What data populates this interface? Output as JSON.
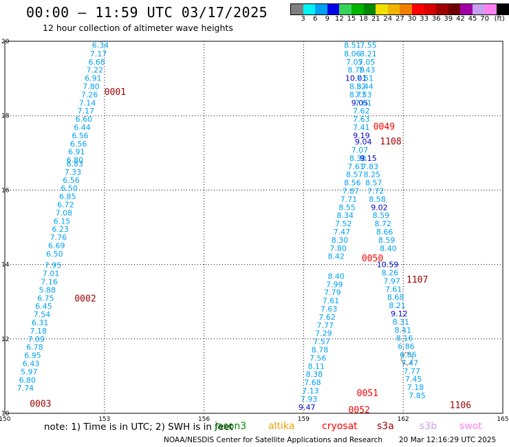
{
  "header": {
    "title": "00:00 — 11:59 UTC 03/17/2025",
    "subtitle": "12 hour collection of altimeter wave heights"
  },
  "colorbar": {
    "colors": [
      "#7f7f7f",
      "#00f2f2",
      "#00a0f0",
      "#0000e8",
      "#3ad35a",
      "#00b400",
      "#008800",
      "#f0e000",
      "#f0b400",
      "#f08000",
      "#ff0000",
      "#d80000",
      "#a00000",
      "#700000",
      "#a000a8",
      "#c8a0f0",
      "#ff80f0",
      "#000000"
    ],
    "labels": [
      "3",
      "6",
      "9",
      "12",
      "15",
      "18",
      "21",
      "24",
      "27",
      "30",
      "33",
      "36",
      "39",
      "42",
      "45",
      "70",
      "(ft)"
    ]
  },
  "map": {
    "x_ticks": [
      "150",
      "153",
      "156",
      "159",
      "162",
      "165"
    ],
    "y_ticks": [
      "20",
      "18",
      "16",
      "14",
      "12",
      "10"
    ]
  },
  "chart_data": {
    "type": "scatter",
    "xlim": [
      150,
      165
    ],
    "ylim": [
      10,
      20
    ],
    "grid": true,
    "x_ticks": [
      150,
      153,
      156,
      159,
      162,
      165
    ],
    "y_ticks": [
      10,
      12,
      14,
      16,
      18,
      20
    ],
    "tracks": [
      {
        "name": "0001",
        "label_pos": [
          153.0,
          18.65
        ],
        "points": [
          [
            152.88,
            19.9,
            "6.34"
          ],
          [
            152.82,
            19.67,
            "7.17"
          ],
          [
            152.77,
            19.45,
            "6.68"
          ],
          [
            152.71,
            19.23,
            "7.22"
          ],
          [
            152.66,
            19.01,
            "6.91"
          ],
          [
            152.6,
            18.79,
            "7.80"
          ],
          [
            152.55,
            18.57,
            "7.26"
          ],
          [
            152.49,
            18.35,
            "7.14"
          ],
          [
            152.44,
            18.13,
            "7.17"
          ],
          [
            152.38,
            17.91,
            "6.60"
          ],
          [
            152.33,
            17.69,
            "6.44"
          ],
          [
            152.27,
            17.47,
            "6.56"
          ],
          [
            152.22,
            17.25,
            "6.56"
          ],
          [
            152.16,
            17.03,
            "6.91"
          ],
          [
            152.11,
            16.81,
            "6.80"
          ],
          [
            152.11,
            16.71,
            "6.83"
          ],
          [
            152.05,
            16.49,
            "7.33"
          ],
          [
            152.0,
            16.27,
            "6.56"
          ],
          [
            151.94,
            16.05,
            "6.50"
          ],
          [
            151.89,
            15.83,
            "6.85"
          ],
          [
            151.83,
            15.61,
            "6.72"
          ],
          [
            151.78,
            15.39,
            "7.08"
          ],
          [
            151.72,
            15.17,
            "6.15"
          ],
          [
            151.67,
            14.95,
            "6.23"
          ],
          [
            151.61,
            14.73,
            "7.76"
          ],
          [
            151.56,
            14.51,
            "6.69"
          ],
          [
            151.5,
            14.29,
            "6.50"
          ]
        ]
      },
      {
        "name": "0002",
        "label_pos": [
          152.1,
          13.1
        ],
        "points": [
          [
            151.45,
            13.98,
            "7.95"
          ],
          [
            151.39,
            13.76,
            "7.01"
          ],
          [
            151.34,
            13.54,
            "7.16"
          ],
          [
            151.28,
            13.32,
            "5.88"
          ],
          [
            151.23,
            13.1,
            "6.75"
          ],
          [
            151.17,
            12.88,
            "6.45"
          ],
          [
            151.12,
            12.66,
            "7.54"
          ],
          [
            151.06,
            12.44,
            "6.31"
          ],
          [
            151.01,
            12.22,
            "7.18"
          ],
          [
            150.95,
            12.0,
            "7.09"
          ],
          [
            150.9,
            11.78,
            "6.78"
          ],
          [
            150.84,
            11.56,
            "6.95"
          ],
          [
            150.79,
            11.34,
            "6.43"
          ],
          [
            150.73,
            11.12,
            "5.97"
          ],
          [
            150.68,
            10.9,
            "6.80"
          ],
          [
            150.62,
            10.68,
            "7.74"
          ]
        ]
      },
      {
        "name": "0003",
        "label_pos": [
          150.75,
          10.27
        ],
        "points": []
      },
      {
        "name": "0049",
        "label_pos": [
          161.1,
          17.72
        ],
        "points": [
          [
            160.47,
            19.9,
            "8.51"
          ],
          [
            160.95,
            19.9,
            "7.55"
          ],
          [
            160.47,
            19.67,
            "8.06"
          ],
          [
            160.95,
            19.67,
            "8.21"
          ],
          [
            160.53,
            19.45,
            "7.05"
          ],
          [
            160.9,
            19.45,
            "7.05"
          ],
          [
            160.58,
            19.23,
            "8.79"
          ],
          [
            160.9,
            19.23,
            "7.43"
          ],
          [
            160.58,
            19.01,
            "10.01"
          ],
          [
            160.85,
            19.01,
            "7.61"
          ],
          [
            160.63,
            18.79,
            "8.52"
          ],
          [
            160.85,
            18.79,
            "8.44"
          ],
          [
            160.63,
            18.57,
            "8.77"
          ],
          [
            160.8,
            18.57,
            "7.53"
          ],
          [
            160.69,
            18.35,
            "9.05"
          ],
          [
            160.8,
            18.35,
            "7.61"
          ],
          [
            160.74,
            18.13,
            "7.62"
          ],
          [
            160.74,
            17.91,
            "7.63"
          ],
          [
            160.74,
            17.69,
            "7.41"
          ],
          [
            160.74,
            17.47,
            "9.19"
          ]
        ]
      },
      {
        "name": "1108",
        "label_pos": [
          161.3,
          17.32
        ],
        "points": [
          [
            160.8,
            17.3,
            "9.04"
          ],
          [
            160.69,
            17.08,
            "7.07"
          ],
          [
            160.63,
            16.86,
            "8.30"
          ],
          [
            160.58,
            16.64,
            "7.61"
          ],
          [
            160.53,
            16.42,
            "8.57"
          ],
          [
            160.47,
            16.2,
            "8.56"
          ],
          [
            160.42,
            15.98,
            "7.87"
          ],
          [
            160.36,
            15.76,
            "7.71"
          ],
          [
            160.31,
            15.54,
            "8.55"
          ],
          [
            160.25,
            15.32,
            "8.34"
          ],
          [
            160.2,
            15.1,
            "7.52"
          ],
          [
            160.15,
            14.88,
            "7.47"
          ],
          [
            160.09,
            14.66,
            "8.30"
          ],
          [
            160.04,
            14.44,
            "7.80"
          ],
          [
            159.98,
            14.22,
            "8.42"
          ],
          [
            160.95,
            16.86,
            "9.15"
          ],
          [
            161.0,
            16.64,
            "7.83"
          ],
          [
            161.06,
            16.42,
            "8.25"
          ],
          [
            161.11,
            16.2,
            "8.57"
          ],
          [
            161.17,
            15.98,
            "7.72"
          ],
          [
            161.22,
            15.76,
            "8.58"
          ],
          [
            161.28,
            15.54,
            "9.02"
          ],
          [
            161.33,
            15.32,
            "8.59"
          ],
          [
            161.39,
            15.1,
            "8.72"
          ],
          [
            161.44,
            14.88,
            "8.66"
          ],
          [
            161.5,
            14.66,
            "8.59"
          ],
          [
            161.55,
            14.44,
            "8.40"
          ]
        ]
      },
      {
        "name": "0050",
        "label_pos": [
          160.75,
          14.18
        ],
        "points": []
      },
      {
        "name": "1107",
        "label_pos": [
          162.1,
          13.6
        ],
        "points": [
          [
            161.53,
            14.0,
            "10.59"
          ],
          [
            161.6,
            13.78,
            "8.26"
          ],
          [
            161.66,
            13.56,
            "7.97"
          ],
          [
            161.71,
            13.34,
            "7.61"
          ],
          [
            161.77,
            13.12,
            "8.68"
          ],
          [
            161.82,
            12.9,
            "8.21"
          ],
          [
            161.88,
            12.68,
            "9.12"
          ],
          [
            161.93,
            12.46,
            "8.31"
          ],
          [
            161.99,
            12.24,
            "8.41"
          ],
          [
            162.04,
            12.02,
            "8.16"
          ],
          [
            162.09,
            11.8,
            "6.86"
          ],
          [
            162.15,
            11.58,
            "6.86"
          ],
          [
            162.2,
            11.36,
            "7.47"
          ],
          [
            162.26,
            11.14,
            "7.77"
          ],
          [
            162.31,
            10.92,
            "7.45"
          ],
          [
            162.37,
            10.7,
            "7.18"
          ],
          [
            162.42,
            10.48,
            "7.85"
          ]
        ]
      },
      {
        "name": "0051",
        "label_pos": [
          160.6,
          10.55
        ],
        "points": [
          [
            159.98,
            13.69,
            "8.40"
          ],
          [
            159.93,
            13.47,
            "7.99"
          ],
          [
            159.87,
            13.25,
            "7.79"
          ],
          [
            159.82,
            13.03,
            "7.61"
          ],
          [
            159.76,
            12.81,
            "7.63"
          ],
          [
            159.71,
            12.59,
            "7.62"
          ],
          [
            159.65,
            12.37,
            "7.77"
          ],
          [
            159.6,
            12.15,
            "7.29"
          ],
          [
            159.54,
            11.93,
            "7.57"
          ],
          [
            159.49,
            11.71,
            "8.78"
          ],
          [
            159.43,
            11.49,
            "7.56"
          ],
          [
            159.38,
            11.27,
            "8.11"
          ],
          [
            159.32,
            11.05,
            "8.38"
          ],
          [
            159.27,
            10.83,
            "7.68"
          ],
          [
            159.21,
            10.61,
            "7.13"
          ],
          [
            159.16,
            10.39,
            "7.93"
          ],
          [
            159.1,
            10.17,
            "9.47"
          ]
        ]
      },
      {
        "name": "0052",
        "label_pos": [
          160.35,
          10.1
        ],
        "points": []
      },
      {
        "name": "1106",
        "label_pos": [
          163.4,
          10.23
        ],
        "points": []
      }
    ]
  },
  "notes": {
    "note_text": "note: 1) Time is in UTC; 2) SWH is in feet",
    "legend": [
      {
        "label": "jason3",
        "color": "#008800"
      },
      {
        "label": "altika",
        "color": "#f0a000"
      },
      {
        "label": "cryosat",
        "color": "#ff0000"
      },
      {
        "label": "s3a",
        "color": "#a00000"
      },
      {
        "label": "s3b",
        "color": "#c8a0f0"
      },
      {
        "label": "swot",
        "color": "#ff80f0"
      }
    ]
  },
  "footer": {
    "credit": "NOAA/NESDIS Center for Satellite Applications and Research",
    "timestamp": "20 Mar 12:16:29 UTC 2025"
  }
}
